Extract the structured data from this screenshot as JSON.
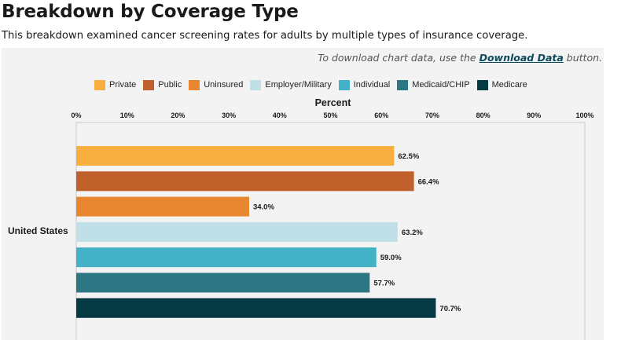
{
  "header": {
    "title": "Breakdown by Coverage Type",
    "subtitle": "This breakdown examined cancer screening rates for adults by multiple types of insurance coverage."
  },
  "download_note": {
    "prefix": "To download chart data, use the ",
    "link_label": "Download Data",
    "suffix": " button."
  },
  "colors": {
    "Private": "#f9ae40",
    "Public": "#c0612b",
    "Uninsured": "#e8872f",
    "Employer/Military": "#bfe0e7",
    "Individual": "#43b2c6",
    "Medicaid/CHIP": "#2d7683",
    "Medicare": "#053a45"
  },
  "chart_data": {
    "type": "bar",
    "orientation": "horizontal",
    "title": "Breakdown by Coverage Type",
    "xlabel": "Percent",
    "xlim": [
      0,
      100
    ],
    "x_ticks": [
      "0%",
      "10%",
      "20%",
      "30%",
      "40%",
      "50%",
      "60%",
      "70%",
      "80%",
      "90%",
      "100%"
    ],
    "tick_values": [
      0,
      10,
      20,
      30,
      40,
      50,
      60,
      70,
      80,
      90,
      100
    ],
    "categories": [
      "United States"
    ],
    "legend_position": "top",
    "series": [
      {
        "name": "Private",
        "values": [
          62.5
        ],
        "label": "62.5%"
      },
      {
        "name": "Public",
        "values": [
          66.4
        ],
        "label": "66.4%"
      },
      {
        "name": "Uninsured",
        "values": [
          34.0
        ],
        "label": "34.0%"
      },
      {
        "name": "Employer/Military",
        "values": [
          63.2
        ],
        "label": "63.2%"
      },
      {
        "name": "Individual",
        "values": [
          59.0
        ],
        "label": "59.0%"
      },
      {
        "name": "Medicaid/CHIP",
        "values": [
          57.7
        ],
        "label": "57.7%"
      },
      {
        "name": "Medicare",
        "values": [
          70.7
        ],
        "label": "70.7%"
      }
    ]
  }
}
